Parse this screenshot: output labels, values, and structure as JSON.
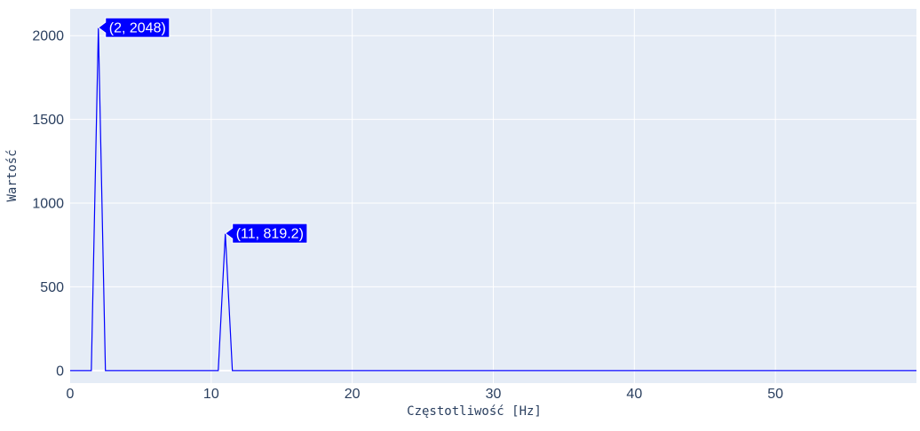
{
  "chart_data": {
    "type": "line",
    "xlabel": "Częstotliwość [Hz]",
    "ylabel": "Wartość",
    "xlim": [
      0,
      60
    ],
    "ylim": [
      -75,
      2160
    ],
    "x_ticks": [
      0,
      10,
      20,
      30,
      40,
      50
    ],
    "y_ticks": [
      0,
      500,
      1000,
      1500,
      2000
    ],
    "grid": true,
    "series": [
      {
        "color": "#0000ff",
        "x": [
          0,
          1.5,
          2,
          2.5,
          10.5,
          11,
          11.5,
          60
        ],
        "y": [
          0,
          0,
          2048,
          0,
          0,
          819.2,
          0,
          0
        ]
      }
    ],
    "annotations": [
      {
        "x": 2,
        "y": 2048,
        "text": "(2, 2048)"
      },
      {
        "x": 11,
        "y": 819.2,
        "text": "(11, 819.2)"
      }
    ],
    "colors": {
      "plot_bg": "#e5ecf6",
      "grid": "#ffffff",
      "line": "#0000ff",
      "label_bg": "#0000ff"
    }
  }
}
